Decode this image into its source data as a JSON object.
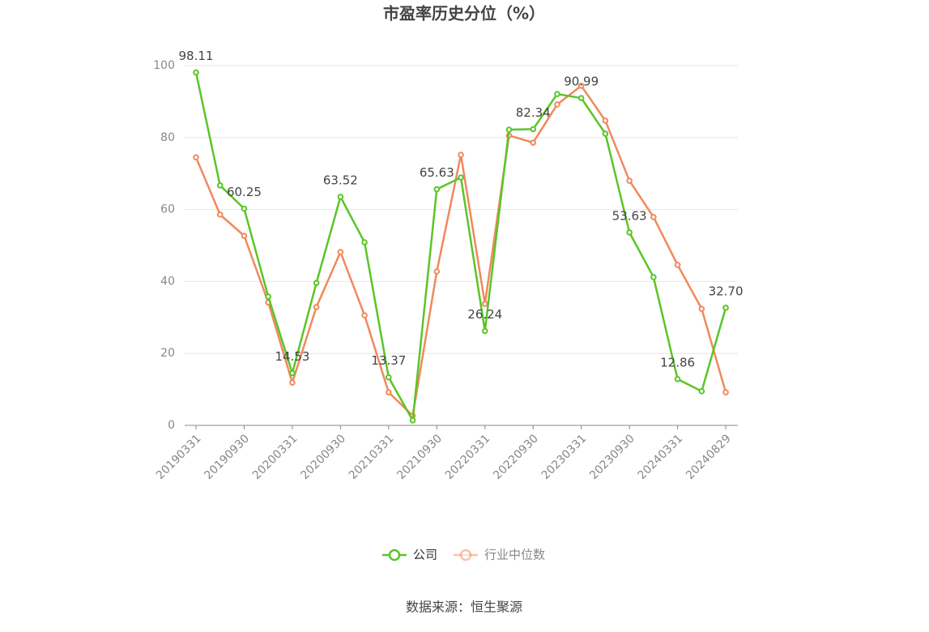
{
  "chart_data": {
    "type": "line",
    "title": "市盈率历史分位（%）",
    "categories": [
      "20190331",
      null,
      "20190930",
      null,
      "20200331",
      null,
      "20200930",
      null,
      "20210331",
      null,
      "20210930",
      null,
      "20220331",
      null,
      "20220930",
      null,
      "20230331",
      null,
      "20230930",
      null,
      "20240331",
      null,
      "20240829"
    ],
    "series": [
      {
        "name": "公司",
        "color": "#5ac528",
        "values": [
          98.11,
          66.7,
          60.25,
          35.8,
          14.53,
          39.6,
          63.52,
          50.9,
          13.37,
          1.4,
          65.63,
          68.9,
          26.24,
          82.2,
          82.34,
          92.1,
          90.99,
          81.1,
          53.63,
          41.2,
          12.86,
          9.5,
          32.7
        ],
        "value_labels": [
          "98.11",
          null,
          "60.25",
          null,
          "14.53",
          null,
          "63.52",
          null,
          "13.37",
          null,
          "65.63",
          null,
          "26.24",
          null,
          "82.34",
          null,
          "90.99",
          null,
          "53.63",
          null,
          "12.86",
          null,
          "32.70"
        ]
      },
      {
        "name": "行业中位数",
        "color": "#f0895c",
        "values": [
          74.5,
          58.6,
          52.7,
          34.2,
          11.9,
          32.9,
          48.2,
          30.6,
          9.2,
          2.7,
          42.8,
          75.2,
          33.8,
          80.6,
          78.6,
          89.2,
          94.4,
          84.7,
          68.0,
          57.9,
          44.6,
          32.4,
          9.2
        ]
      }
    ],
    "ylim": [
      0,
      100
    ],
    "yticks": [
      0,
      20,
      40,
      60,
      80,
      100
    ],
    "grid": true,
    "source": "数据来源：恒生聚源"
  }
}
